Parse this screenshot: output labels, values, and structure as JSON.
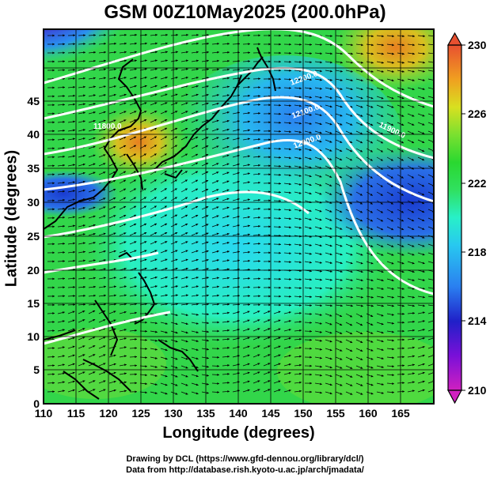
{
  "title": "GSM 00Z10May2025 (200.0hPa)",
  "x_axis_label": "Longitude (degrees)",
  "y_axis_label": "Latitude  (degrees)",
  "credit_line1": "Drawing by DCL (https://www.gfd-dennou.org/library/dcl/)",
  "credit_line2": "Data from http://database.rish.kyoto-u.ac.jp/arch/jmadata/",
  "map": {
    "lon_range": [
      110,
      170
    ],
    "lat_range": [
      0,
      50
    ],
    "lon_ticks": [
      "110",
      "115",
      "120",
      "125",
      "130",
      "135",
      "140",
      "145",
      "150",
      "155",
      "160",
      "165"
    ],
    "lat_ticks": [
      "0",
      "5",
      "10",
      "15",
      "20",
      "25",
      "30",
      "35",
      "40",
      "45"
    ],
    "contour_labels": [
      "12200.0",
      "12100.0",
      "12000.0",
      "11900.0",
      "11800.0"
    ]
  },
  "colorbar": {
    "min": 210,
    "max": 230,
    "tick_labels": [
      "230",
      "226",
      "222",
      "218",
      "214",
      "210"
    ],
    "colors": [
      "#d020c0",
      "#7a10d8",
      "#2020c8",
      "#2a7ff0",
      "#28c8f0",
      "#28f0c8",
      "#30e060",
      "#2ad830",
      "#7ae030",
      "#d8e020",
      "#f0a020",
      "#e85030"
    ]
  }
}
